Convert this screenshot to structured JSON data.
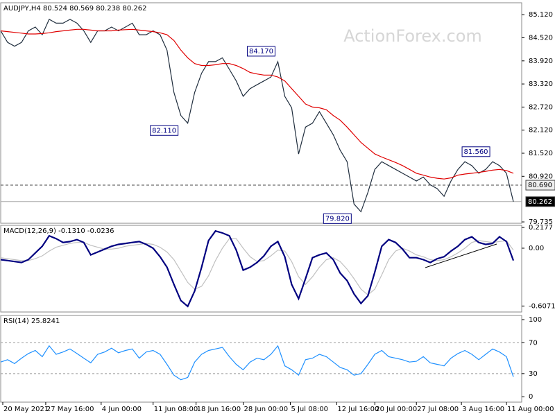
{
  "chart_data": [
    {
      "type": "line",
      "title": "AUDJPY,H4  80.524 80.569 80.238 80.262",
      "watermark": "ActionForex.com",
      "x": [
        0,
        1,
        2,
        3,
        4,
        5,
        6,
        7,
        8,
        9,
        10,
        11,
        12,
        13,
        14,
        15,
        16,
        17,
        18,
        19,
        20,
        21,
        22,
        23,
        24,
        25,
        26,
        27,
        28,
        29,
        30,
        31,
        32,
        33,
        34,
        35,
        36,
        37,
        38,
        39,
        40,
        41,
        42,
        43,
        44,
        45,
        46,
        47,
        48,
        49,
        50,
        51,
        52,
        53,
        54,
        55,
        56,
        57,
        58,
        59,
        60,
        61,
        62,
        63,
        64,
        65,
        66,
        67,
        68,
        69,
        70,
        71,
        72,
        73,
        74
      ],
      "xlim": [
        0,
        75.2
      ],
      "ylim": [
        79.7,
        85.43
      ],
      "yticks": [
        {
          "value": 85.12,
          "label": "85.120"
        },
        {
          "value": 84.52,
          "label": "84.520"
        },
        {
          "value": 83.92,
          "label": "83.920"
        },
        {
          "value": 83.32,
          "label": "83.320"
        },
        {
          "value": 82.72,
          "label": "82.720"
        },
        {
          "value": 82.12,
          "label": "82.120"
        },
        {
          "value": 81.52,
          "label": "81.520"
        },
        {
          "value": 80.92,
          "label": "80.920"
        },
        {
          "value": 79.735,
          "label": "79.735"
        }
      ],
      "series": [
        {
          "color": "#1f2d3d",
          "values": [
            84.7,
            84.4,
            84.3,
            84.4,
            84.7,
            84.8,
            84.6,
            85.0,
            84.9,
            84.9,
            85.0,
            84.9,
            84.7,
            84.4,
            84.7,
            84.7,
            84.8,
            84.7,
            84.8,
            84.9,
            84.6,
            84.6,
            84.7,
            84.6,
            84.2,
            83.1,
            82.5,
            82.3,
            83.1,
            83.6,
            83.9,
            83.9,
            84.0,
            83.7,
            83.4,
            83.0,
            83.2,
            83.3,
            83.4,
            83.5,
            83.9,
            83.0,
            82.7,
            81.5,
            82.2,
            82.3,
            82.6,
            82.3,
            82.0,
            81.6,
            81.3,
            80.2,
            80.0,
            80.5,
            81.1,
            81.3,
            81.2,
            81.1,
            81.0,
            80.9,
            80.8,
            80.9,
            80.7,
            80.6,
            80.4,
            80.8,
            81.1,
            81.3,
            81.2,
            81.0,
            81.1,
            81.3,
            81.2,
            81.0,
            80.262
          ]
        },
        {
          "color": "#e00000",
          "values": [
            84.7,
            84.68,
            84.66,
            84.64,
            84.62,
            84.62,
            84.63,
            84.65,
            84.68,
            84.7,
            84.72,
            84.74,
            84.74,
            84.72,
            84.7,
            84.7,
            84.7,
            84.72,
            84.73,
            84.74,
            84.72,
            84.7,
            84.68,
            84.65,
            84.6,
            84.45,
            84.2,
            84.0,
            83.85,
            83.8,
            83.8,
            83.82,
            83.85,
            83.85,
            83.8,
            83.72,
            83.62,
            83.58,
            83.55,
            83.55,
            83.5,
            83.4,
            83.2,
            83.0,
            82.8,
            82.72,
            82.7,
            82.65,
            82.5,
            82.38,
            82.2,
            82.0,
            81.8,
            81.65,
            81.5,
            81.42,
            81.35,
            81.28,
            81.2,
            81.1,
            81.0,
            80.95,
            80.9,
            80.87,
            80.85,
            80.88,
            80.95,
            80.98,
            81.0,
            81.02,
            81.05,
            81.08,
            81.1,
            81.07,
            81.0
          ]
        }
      ],
      "hlines": [
        {
          "value": 80.69,
          "label": "80.690",
          "style": "dashed"
        },
        {
          "value": 80.262,
          "label": "80.262",
          "style": "solid"
        }
      ],
      "annotations": [
        {
          "x": 40,
          "value": 84.17,
          "label": "84.170"
        },
        {
          "x": 26,
          "value": 82.11,
          "label": "82.110"
        },
        {
          "x": 51,
          "value": 79.82,
          "label": "79.820"
        },
        {
          "x": 71,
          "value": 81.56,
          "label": "81.560"
        }
      ]
    },
    {
      "type": "line",
      "title": "MACD(12,26,9) -0.1310 -0.0236",
      "x": [
        0,
        1,
        2,
        3,
        4,
        5,
        6,
        7,
        8,
        9,
        10,
        11,
        12,
        13,
        14,
        15,
        16,
        17,
        18,
        19,
        20,
        21,
        22,
        23,
        24,
        25,
        26,
        27,
        28,
        29,
        30,
        31,
        32,
        33,
        34,
        35,
        36,
        37,
        38,
        39,
        40,
        41,
        42,
        43,
        44,
        45,
        46,
        47,
        48,
        49,
        50,
        51,
        52,
        53,
        54,
        55,
        56,
        57,
        58,
        59,
        60,
        61,
        62,
        63,
        64,
        65,
        66,
        67,
        68,
        69,
        70,
        71,
        72,
        73,
        74
      ],
      "xlim": [
        0,
        75.2
      ],
      "ylim": [
        -0.67,
        0.24
      ],
      "yticks": [
        0.2177,
        {
          "value": 0,
          "label": "0.00"
        },
        -0.6071
      ],
      "series": [
        {
          "color": "#c0c0c0",
          "values": [
            -0.1,
            -0.11,
            -0.12,
            -0.13,
            -0.13,
            -0.11,
            -0.08,
            -0.03,
            0.01,
            0.03,
            0.05,
            0.06,
            0.06,
            0.03,
            0.01,
            -0.01,
            -0.01,
            0.0,
            0.02,
            0.03,
            0.04,
            0.05,
            0.04,
            0.01,
            -0.04,
            -0.12,
            -0.24,
            -0.36,
            -0.43,
            -0.4,
            -0.29,
            -0.13,
            0.0,
            0.1,
            0.1,
            0.0,
            -0.09,
            -0.14,
            -0.13,
            -0.08,
            -0.02,
            -0.03,
            -0.14,
            -0.3,
            -0.38,
            -0.3,
            -0.2,
            -0.12,
            -0.1,
            -0.14,
            -0.22,
            -0.32,
            -0.43,
            -0.49,
            -0.43,
            -0.28,
            -0.12,
            -0.03,
            0.0,
            -0.03,
            -0.07,
            -0.09,
            -0.12,
            -0.13,
            -0.12,
            -0.09,
            -0.05,
            0.0,
            0.06,
            0.08,
            0.07,
            0.06,
            0.07,
            0.08,
            -0.02
          ]
        },
        {
          "color": "#000080",
          "values": [
            -0.12,
            -0.13,
            -0.14,
            -0.15,
            -0.12,
            -0.05,
            0.02,
            0.13,
            0.1,
            0.06,
            0.07,
            0.09,
            0.06,
            -0.07,
            -0.04,
            -0.01,
            0.02,
            0.04,
            0.05,
            0.06,
            0.07,
            0.04,
            0.0,
            -0.09,
            -0.2,
            -0.38,
            -0.55,
            -0.61,
            -0.45,
            -0.2,
            0.08,
            0.18,
            0.16,
            0.13,
            -0.02,
            -0.23,
            -0.2,
            -0.15,
            -0.08,
            0.02,
            0.07,
            -0.09,
            -0.38,
            -0.53,
            -0.32,
            -0.1,
            -0.07,
            -0.05,
            -0.12,
            -0.26,
            -0.34,
            -0.48,
            -0.58,
            -0.5,
            -0.25,
            0.02,
            0.09,
            0.06,
            -0.01,
            -0.1,
            -0.1,
            -0.12,
            -0.15,
            -0.11,
            -0.09,
            -0.03,
            0.02,
            0.09,
            0.12,
            0.06,
            0.04,
            0.05,
            0.12,
            0.07,
            -0.13
          ]
        }
      ]
    },
    {
      "type": "line",
      "title": "RSI(14) 25.8241",
      "x": [
        0,
        1,
        2,
        3,
        4,
        5,
        6,
        7,
        8,
        9,
        10,
        11,
        12,
        13,
        14,
        15,
        16,
        17,
        18,
        19,
        20,
        21,
        22,
        23,
        24,
        25,
        26,
        27,
        28,
        29,
        30,
        31,
        32,
        33,
        34,
        35,
        36,
        37,
        38,
        39,
        40,
        41,
        42,
        43,
        44,
        45,
        46,
        47,
        48,
        49,
        50,
        51,
        52,
        53,
        54,
        55,
        56,
        57,
        58,
        59,
        60,
        61,
        62,
        63,
        64,
        65,
        66,
        67,
        68,
        69,
        70,
        71,
        72,
        73,
        74
      ],
      "xlim": [
        0,
        75.2
      ],
      "ylim": [
        -7,
        105.4
      ],
      "yticks": [
        100,
        70,
        30,
        0
      ],
      "levels": [
        70,
        30
      ],
      "xticks": [
        {
          "value": 0.3,
          "label": "20 May 2021"
        },
        {
          "value": 6.5,
          "label": "27 May 16:00"
        },
        {
          "value": 14.5,
          "label": "4 Jun 00:00"
        },
        {
          "value": 22,
          "label": "11 Jun 08:00"
        },
        {
          "value": 28.2,
          "label": "18 Jun 16:00"
        },
        {
          "value": 35,
          "label": "28 Jun 00:00"
        },
        {
          "value": 41.8,
          "label": "5 Jul 08:00"
        },
        {
          "value": 48.5,
          "label": "12 Jul 16:00"
        },
        {
          "value": 54,
          "label": "20 Jul 00:00"
        },
        {
          "value": 60,
          "label": "27 Jul 08:00"
        },
        {
          "value": 66.5,
          "label": "3 Aug 16:00"
        },
        {
          "value": 73,
          "label": "11 Aug 00:00"
        }
      ],
      "series": [
        {
          "color": "#1e90ff",
          "values": [
            45,
            48,
            43,
            50,
            56,
            60,
            52,
            66,
            55,
            58,
            62,
            56,
            50,
            44,
            55,
            58,
            63,
            57,
            60,
            62,
            50,
            58,
            60,
            55,
            42,
            28,
            22,
            25,
            45,
            55,
            60,
            62,
            64,
            52,
            42,
            35,
            45,
            50,
            48,
            55,
            66,
            40,
            35,
            28,
            48,
            50,
            55,
            52,
            45,
            38,
            35,
            28,
            30,
            42,
            55,
            60,
            52,
            50,
            48,
            45,
            46,
            52,
            44,
            42,
            40,
            50,
            56,
            60,
            55,
            48,
            55,
            62,
            58,
            52,
            25.8241
          ]
        }
      ]
    }
  ]
}
